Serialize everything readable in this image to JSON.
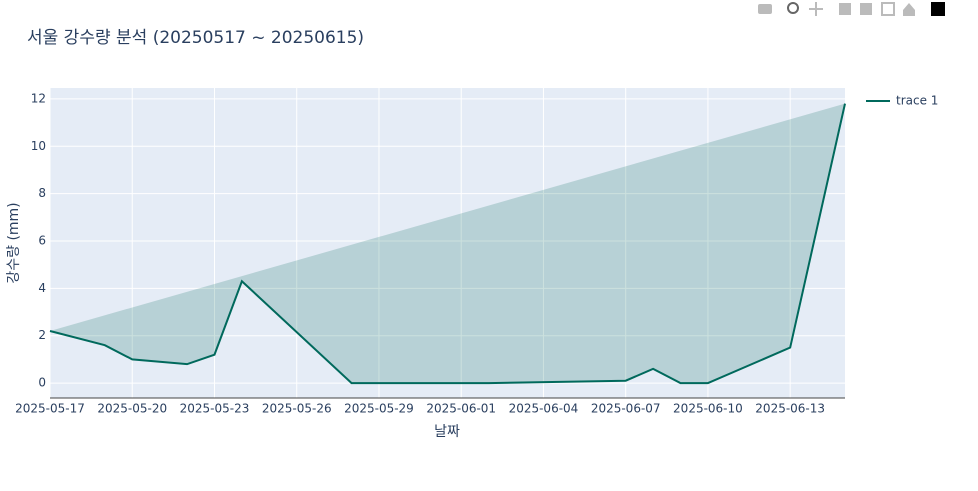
{
  "chart_data": {
    "type": "line",
    "title": "서울 강수량 분석 (20250517 ~ 20250615)",
    "x_label": "날짜",
    "y_label": "강수량 (mm)",
    "x": [
      "2025-05-17",
      "2025-05-19",
      "2025-05-20",
      "2025-05-22",
      "2025-05-23",
      "2025-05-24",
      "2025-05-28",
      "2025-06-02",
      "2025-06-07",
      "2025-06-08",
      "2025-06-09",
      "2025-06-10",
      "2025-06-13",
      "2025-06-15"
    ],
    "series": [
      {
        "name": "trace 1",
        "color": "#00695c",
        "values": [
          2.2,
          1.6,
          1.0,
          0.8,
          1.2,
          4.3,
          0,
          0,
          0.1,
          0.6,
          0,
          0,
          1.5,
          11.8
        ]
      }
    ],
    "fill": "toself",
    "xlim": [
      "2025-05-17",
      "2025-06-15"
    ],
    "xticks": [
      "2025-05-17",
      "2025-05-20",
      "2025-05-23",
      "2025-05-26",
      "2025-05-29",
      "2025-06-01",
      "2025-06-04",
      "2025-06-07",
      "2025-06-10",
      "2025-06-13"
    ],
    "ylim": [
      -0.63,
      12.46
    ],
    "yticks": [
      0,
      2,
      4,
      6,
      8,
      10,
      12
    ],
    "grid": true
  }
}
